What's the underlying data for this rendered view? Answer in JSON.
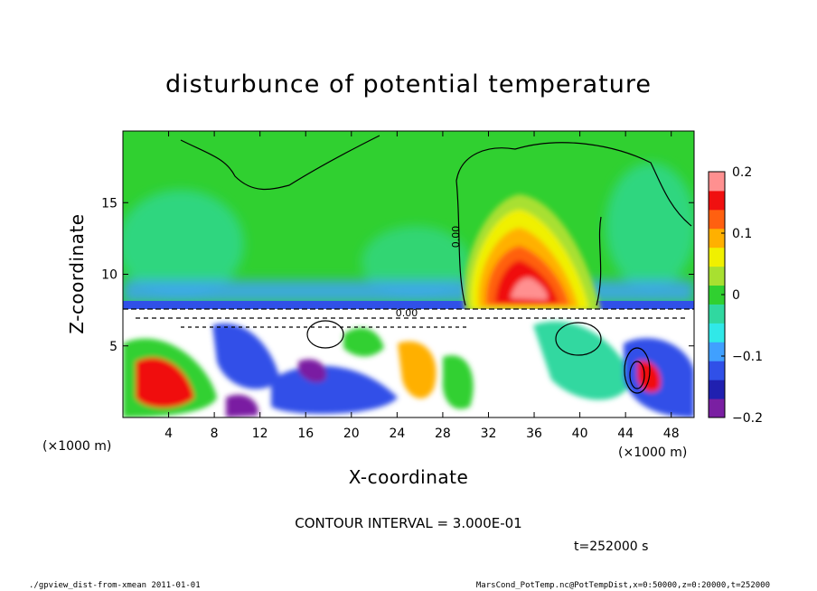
{
  "chart_data": {
    "type": "heatmap",
    "title": "disturbunce of potential temperature",
    "xlabel": "X-coordinate",
    "ylabel": "Z-coordinate",
    "x_unit_left": "(×1000 m)",
    "x_unit_right": "(×1000 m)",
    "xlim": [
      0,
      50
    ],
    "ylim": [
      0,
      20
    ],
    "xticks": [
      4,
      8,
      12,
      16,
      20,
      24,
      28,
      32,
      36,
      40,
      44,
      48
    ],
    "yticks": [
      5,
      10,
      15
    ],
    "contour_interval_text": "CONTOUR INTERVAL = 3.000E-01",
    "contour_label": "0.00",
    "time_text": "t=252000 s",
    "colorbar": {
      "range": [
        -0.2,
        0.2
      ],
      "ticks": [
        {
          "value": 0.2,
          "label": "0.2"
        },
        {
          "value": 0.1,
          "label": "0.1"
        },
        {
          "value": 0,
          "label": "0"
        },
        {
          "value": -0.1,
          "label": "−0.1"
        },
        {
          "value": -0.2,
          "label": "−0.2"
        }
      ],
      "colors": [
        "#7a1fa2",
        "#2020b0",
        "#3050e8",
        "#40a0ff",
        "#30e8e8",
        "#30d8a0",
        "#30d030",
        "#a8e030",
        "#f0f000",
        "#ffb000",
        "#ff6010",
        "#f01010",
        "#ff9090"
      ]
    },
    "field_features": [
      {
        "name": "warm anomaly",
        "x": 34,
        "z": 10,
        "value": 0.2
      },
      {
        "name": "cold layer",
        "x": 25,
        "z": 7.8,
        "value": -0.2
      }
    ]
  },
  "footer": {
    "left": "./gpview_dist-from-xmean  2011-01-01",
    "right": "MarsCond_PotTemp.nc@PotTempDist,x=0:50000,z=0:20000,t=252000"
  }
}
